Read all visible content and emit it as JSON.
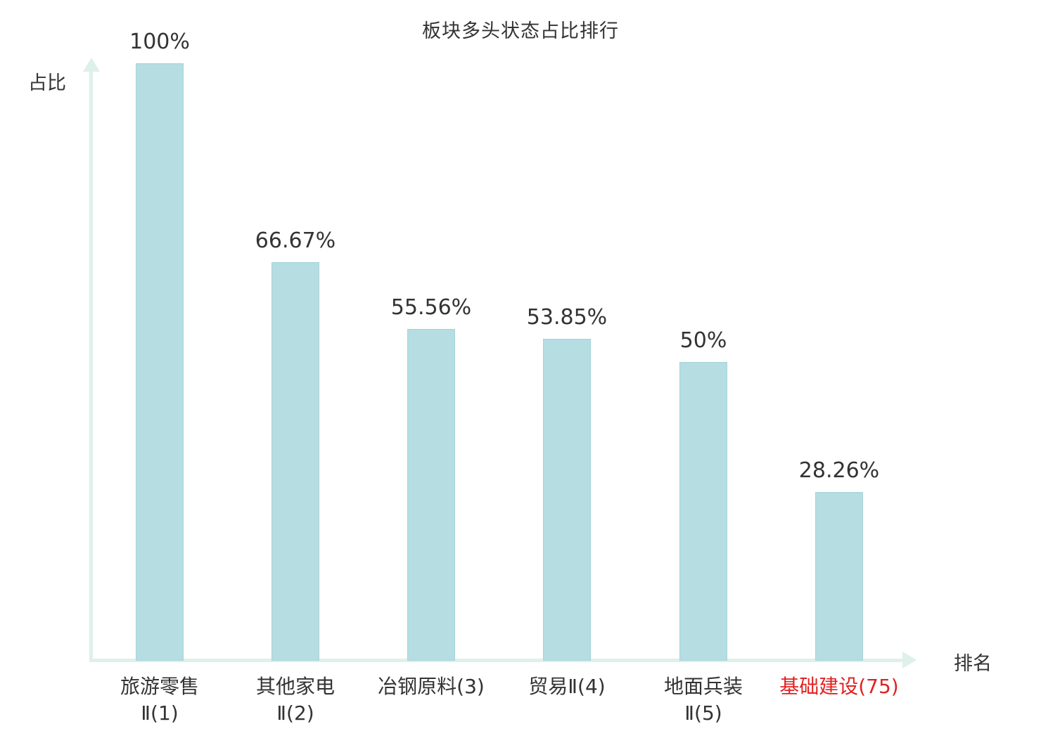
{
  "chart_data": {
    "type": "bar",
    "title": "板块多头状态占比排行",
    "xlabel": "排名",
    "ylabel": "占比",
    "categories": [
      "旅游零售Ⅱ(1)",
      "其他家电Ⅱ(2)",
      "冶钢原料(3)",
      "贸易Ⅱ(4)",
      "地面兵装Ⅱ(5)",
      "基础建设(75)"
    ],
    "values": [
      100,
      66.67,
      55.56,
      53.85,
      50,
      28.26
    ],
    "ylim": [
      0,
      100
    ],
    "grid": false,
    "legend": "none",
    "bars": [
      {
        "label_lines": [
          "旅游零售",
          "Ⅱ(1)"
        ],
        "value": 100,
        "value_label": "100%",
        "label_color": "#333333"
      },
      {
        "label_lines": [
          "其他家电",
          "Ⅱ(2)"
        ],
        "value": 66.67,
        "value_label": "66.67%",
        "label_color": "#333333"
      },
      {
        "label_lines": [
          "冶钢原料(3)"
        ],
        "value": 55.56,
        "value_label": "55.56%",
        "label_color": "#333333"
      },
      {
        "label_lines": [
          "贸易Ⅱ(4)"
        ],
        "value": 53.85,
        "value_label": "53.85%",
        "label_color": "#333333"
      },
      {
        "label_lines": [
          "地面兵装",
          "Ⅱ(5)"
        ],
        "value": 50,
        "value_label": "50%",
        "label_color": "#333333"
      },
      {
        "label_lines": [
          "基础建设(75)"
        ],
        "value": 28.26,
        "value_label": "28.26%",
        "label_color": "#e12222"
      }
    ],
    "colors": {
      "bar_fill": "#b5dde2",
      "bar_edge": "#a6d3da",
      "axis": "#def0ea",
      "text": "#333333",
      "highlight": "#e12222"
    }
  }
}
